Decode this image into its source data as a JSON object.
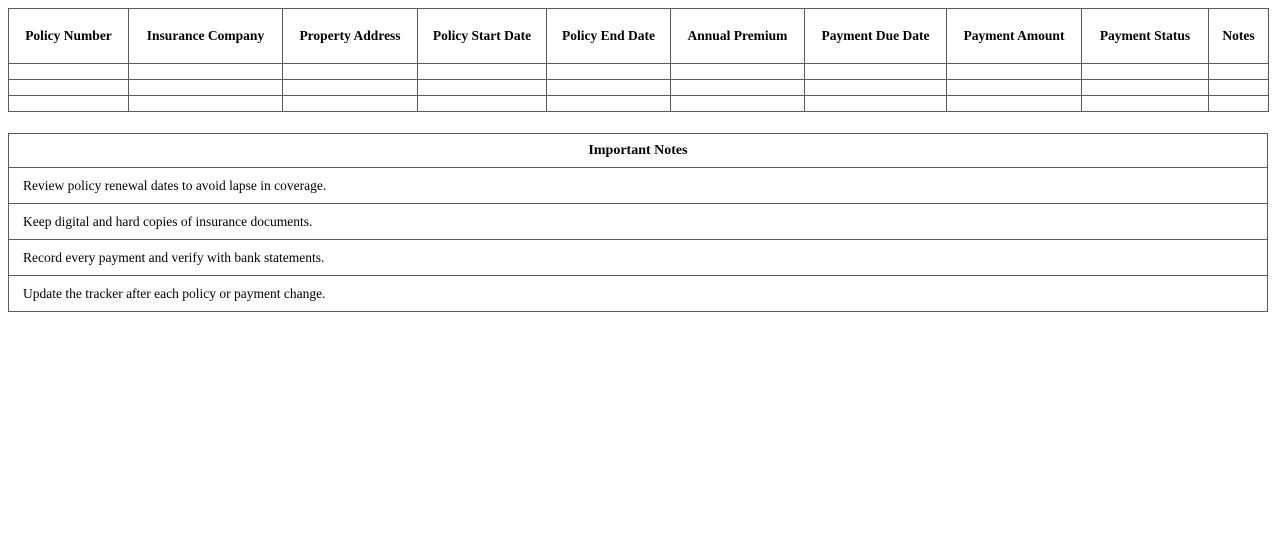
{
  "policy_table": {
    "headers": [
      "Policy Number",
      "Insurance Company",
      "Property Address",
      "Policy Start Date",
      "Policy End Date",
      "Annual Premium",
      "Payment Due Date",
      "Payment Amount",
      "Payment Status",
      "Notes"
    ],
    "empty_row_count": 3
  },
  "notes_table": {
    "title": "Important Notes",
    "notes": [
      "Review policy renewal dates to avoid lapse in coverage.",
      "Keep digital and hard copies of insurance documents.",
      "Record every payment and verify with bank statements.",
      "Update the tracker after each policy or payment change."
    ]
  },
  "colors": {
    "border": "#595959",
    "text": "#000000",
    "background": "#ffffff"
  }
}
